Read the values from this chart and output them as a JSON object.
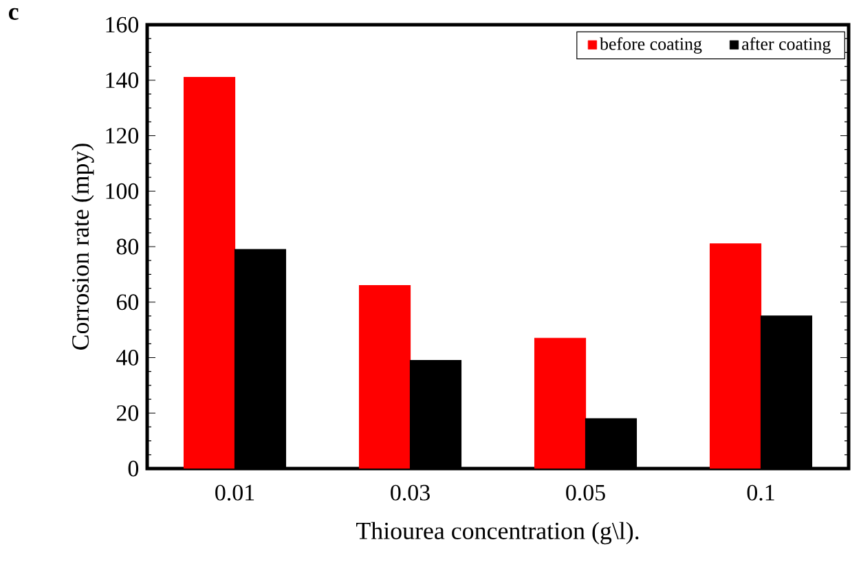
{
  "chart_data": {
    "type": "bar",
    "xlabel": "Thiourea concentration (g\\l).",
    "ylabel": "Corrosion rate (mpy)",
    "categories": [
      "0.01",
      "0.03",
      "0.05",
      "0.1"
    ],
    "series": [
      {
        "name": "before coating",
        "color": "#ff0000",
        "values": [
          141,
          66,
          47,
          81
        ]
      },
      {
        "name": "after coating",
        "color": "#000000",
        "values": [
          79,
          39,
          18,
          55
        ]
      }
    ],
    "ylim": [
      0,
      160
    ],
    "yticks": [
      0,
      20,
      40,
      60,
      80,
      100,
      120,
      140,
      160
    ],
    "grid": false,
    "legend": "top right",
    "annotations": [
      "c"
    ]
  }
}
